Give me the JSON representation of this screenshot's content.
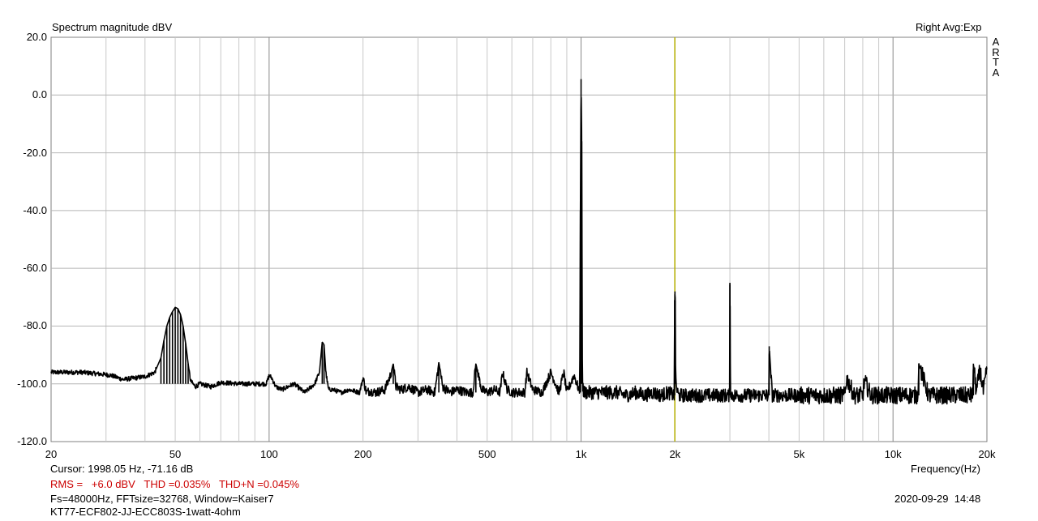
{
  "chart_data": {
    "type": "line",
    "title": "Spectrum magnitude dBV",
    "top_right_label": "Right Avg:Exp",
    "brand": "ARTA",
    "xlabel": "Frequency(Hz)",
    "ylabel": "",
    "x_scale": "log",
    "xlim": [
      20,
      20000
    ],
    "ylim": [
      -120,
      20
    ],
    "grid": true,
    "y_ticks": [
      "20.0",
      "0.0",
      "-20.0",
      "-40.0",
      "-60.0",
      "-80.0",
      "-100.0",
      "-120.0"
    ],
    "x_ticks": [
      {
        "value": 20,
        "label": "20"
      },
      {
        "value": 50,
        "label": "50"
      },
      {
        "value": 100,
        "label": "100"
      },
      {
        "value": 200,
        "label": "200"
      },
      {
        "value": 500,
        "label": "500"
      },
      {
        "value": 1000,
        "label": "1k"
      },
      {
        "value": 2000,
        "label": "2k"
      },
      {
        "value": 5000,
        "label": "5k"
      },
      {
        "value": 10000,
        "label": "10k"
      },
      {
        "value": 20000,
        "label": "20k"
      }
    ],
    "cursor_frequency_hz": 1998.05,
    "cursor_color": "#b5b000",
    "line_color": "#000000",
    "series": [
      {
        "x": [
          20,
          25,
          28,
          31,
          34,
          37,
          40,
          43,
          45,
          46,
          47,
          48,
          49,
          50,
          51,
          52,
          53,
          54,
          55,
          56,
          58,
          60,
          65,
          70,
          80,
          90,
          98,
          100,
          102,
          105,
          110,
          120,
          130,
          140,
          145,
          148,
          150,
          152,
          155,
          160,
          170,
          180,
          195,
          200,
          205,
          210,
          220,
          235,
          245,
          250,
          255,
          265,
          280,
          300,
          320,
          340,
          350,
          360,
          380,
          400,
          430,
          450,
          460,
          480,
          500,
          530,
          550,
          560,
          580,
          600,
          660,
          670,
          700,
          750,
          800,
          850,
          880,
          900,
          950,
          990,
          995,
          1000,
          1005,
          1010,
          1020,
          1050,
          1100,
          1200,
          1300,
          1400,
          1500,
          1600,
          1700,
          1800,
          1900,
          1990,
          1995,
          2000,
          2005,
          2010,
          2050,
          2200,
          2400,
          2600,
          2800,
          2950,
          2995,
          3000,
          3005,
          3010,
          3050,
          3300,
          3600,
          3900,
          4000,
          4010,
          4100,
          4500,
          5000,
          5500,
          6000,
          6500,
          7000,
          7100,
          7500,
          8000,
          8100,
          8500,
          9000,
          10000,
          11000,
          12000,
          12100,
          13000,
          14000,
          15000,
          16000,
          17000,
          18000,
          18100,
          18500,
          19000,
          19500,
          20000
        ],
        "y": [
          -96,
          -96,
          -96.5,
          -97,
          -98.5,
          -98,
          -97.5,
          -96,
          -91,
          -85,
          -80,
          -77,
          -75,
          -73.5,
          -74,
          -76,
          -80,
          -86,
          -93,
          -99,
          -101,
          -100,
          -101,
          -99.5,
          -100,
          -100,
          -100,
          -97,
          -98,
          -101,
          -102,
          -100,
          -103,
          -100,
          -96,
          -85.5,
          -86.5,
          -96,
          -102,
          -102,
          -103,
          -102,
          -103,
          -98,
          -103,
          -102.5,
          -103,
          -102,
          -97,
          -93,
          -101,
          -102,
          -101,
          -103,
          -102,
          -103,
          -92.5,
          -101,
          -103,
          -102,
          -103,
          -103,
          -93,
          -102,
          -103,
          -102,
          -103,
          -96,
          -102,
          -103,
          -103,
          -96,
          -102,
          -103,
          -96,
          -103,
          -96,
          -103,
          -97,
          -103,
          -40,
          5.5,
          -16,
          -100,
          -103,
          -103,
          -103,
          -103,
          -103,
          -104,
          -103,
          -104,
          -103,
          -104,
          -103,
          -104,
          -71,
          -68,
          -71.16,
          -100,
          -104,
          -104,
          -104,
          -104,
          -104,
          -104,
          -104,
          -65,
          -73,
          -102,
          -104,
          -104,
          -104,
          -104,
          -104,
          -87,
          -104,
          -104,
          -104,
          -104,
          -104,
          -104,
          -104,
          -98,
          -104,
          -104,
          -99,
          -104,
          -104,
          -104,
          -104,
          -104,
          -93,
          -104,
          -104,
          -104,
          -104,
          -104,
          -104,
          -93,
          -103,
          -95,
          -103,
          -95
        ]
      }
    ]
  },
  "footer": {
    "cursor_text": "Cursor: 1998.05 Hz, -71.16 dB",
    "rms_text": "RMS =   +6.0 dBV   THD =0.035%   THD+N =0.045%",
    "settings_text": "Fs=48000Hz, FFTsize=32768, Window=Kaiser7",
    "file_text": "KT77-ECF802-JJ-ECC803S-1watt-4ohm",
    "datetime_text": "2020-09-29  14:48"
  }
}
